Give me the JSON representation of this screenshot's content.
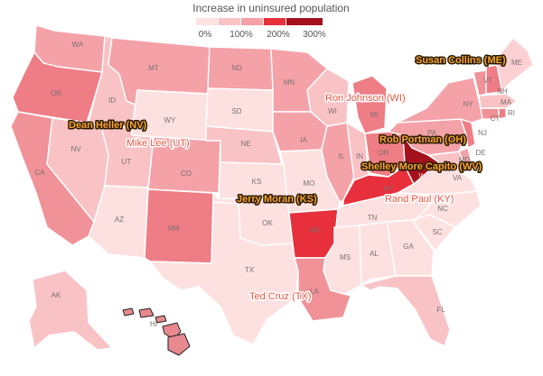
{
  "legend": {
    "title": "Increase in uninsured population",
    "ticks": [
      "0%",
      "100%",
      "200%",
      "300%"
    ],
    "colors": [
      "#fde1e1",
      "#f9c3c6",
      "#f4a2a8",
      "#e7303c",
      "#a4111c"
    ]
  },
  "states": [
    {
      "abbr": "WA",
      "fill": "#f4a2a8"
    },
    {
      "abbr": "OR",
      "fill": "#ee7d86"
    },
    {
      "abbr": "CA",
      "fill": "#f19198"
    },
    {
      "abbr": "ID",
      "fill": "#f9c3c6"
    },
    {
      "abbr": "NV",
      "fill": "#f9c3c6"
    },
    {
      "abbr": "MT",
      "fill": "#f4a2a8"
    },
    {
      "abbr": "WY",
      "fill": "#fde1e1"
    },
    {
      "abbr": "UT",
      "fill": "#f9c3c6"
    },
    {
      "abbr": "AZ",
      "fill": "#fde1e1"
    },
    {
      "abbr": "CO",
      "fill": "#f4a2a8"
    },
    {
      "abbr": "NM",
      "fill": "#ee7d86"
    },
    {
      "abbr": "ND",
      "fill": "#f4a2a8"
    },
    {
      "abbr": "SD",
      "fill": "#fde1e1"
    },
    {
      "abbr": "NE",
      "fill": "#f9c3c6"
    },
    {
      "abbr": "KS",
      "fill": "#fde1e1"
    },
    {
      "abbr": "OK",
      "fill": "#fde1e1"
    },
    {
      "abbr": "TX",
      "fill": "#fde1e1"
    },
    {
      "abbr": "MN",
      "fill": "#f4a2a8"
    },
    {
      "abbr": "IA",
      "fill": "#f4a2a8"
    },
    {
      "abbr": "MO",
      "fill": "#fde1e1"
    },
    {
      "abbr": "AR",
      "fill": "#e7303c"
    },
    {
      "abbr": "LA",
      "fill": "#f19198"
    },
    {
      "abbr": "WI",
      "fill": "#f9c3c6"
    },
    {
      "abbr": "IL",
      "fill": "#f4a2a8"
    },
    {
      "abbr": "MI",
      "fill": "#ee7d86"
    },
    {
      "abbr": "IN",
      "fill": "#f9c3c6"
    },
    {
      "abbr": "OH",
      "fill": "#ee7d86"
    },
    {
      "abbr": "KY",
      "fill": "#e7303c"
    },
    {
      "abbr": "TN",
      "fill": "#fde1e1"
    },
    {
      "abbr": "MS",
      "fill": "#fde1e1"
    },
    {
      "abbr": "AL",
      "fill": "#fde1e1"
    },
    {
      "abbr": "GA",
      "fill": "#fde1e1"
    },
    {
      "abbr": "FL",
      "fill": "#f9c3c6"
    },
    {
      "abbr": "SC",
      "fill": "#fde1e1"
    },
    {
      "abbr": "NC",
      "fill": "#fde1e1"
    },
    {
      "abbr": "VA",
      "fill": "#fde1e1"
    },
    {
      "abbr": "WV",
      "fill": "#a4111c"
    },
    {
      "abbr": "MD",
      "fill": "#f9c3c6"
    },
    {
      "abbr": "DE",
      "fill": "#f4a2a8"
    },
    {
      "abbr": "PA",
      "fill": "#f4a2a8"
    },
    {
      "abbr": "NJ",
      "fill": "#ee7d86"
    },
    {
      "abbr": "NY",
      "fill": "#f4a2a8"
    },
    {
      "abbr": "CT",
      "fill": "#f19198"
    },
    {
      "abbr": "RI",
      "fill": "#ee7d86"
    },
    {
      "abbr": "MA",
      "fill": "#f9c3c6"
    },
    {
      "abbr": "VT",
      "fill": "#f19198"
    },
    {
      "abbr": "NH",
      "fill": "#ee7d86"
    },
    {
      "abbr": "ME",
      "fill": "#fbd1d3"
    },
    {
      "abbr": "AK",
      "fill": "#f9c3c6"
    },
    {
      "abbr": "HI",
      "fill": "#e8888f"
    }
  ],
  "senators": [
    {
      "name": "Susan Collins (ME)",
      "color": "orange"
    },
    {
      "name": "Ron Johnson (WI)",
      "color": "red"
    },
    {
      "name": "Dean Heller (NV)",
      "color": "orange"
    },
    {
      "name": "Mike Lee (UT)",
      "color": "red"
    },
    {
      "name": "Rob Portman (OH)",
      "color": "orange"
    },
    {
      "name": "Shelley More Capito (WV)",
      "color": "orange"
    },
    {
      "name": "Jerry Moran (KS)",
      "color": "orange"
    },
    {
      "name": "Rand Paul (KY)",
      "color": "red"
    },
    {
      "name": "Ted Cruz (TX)",
      "color": "red"
    }
  ]
}
